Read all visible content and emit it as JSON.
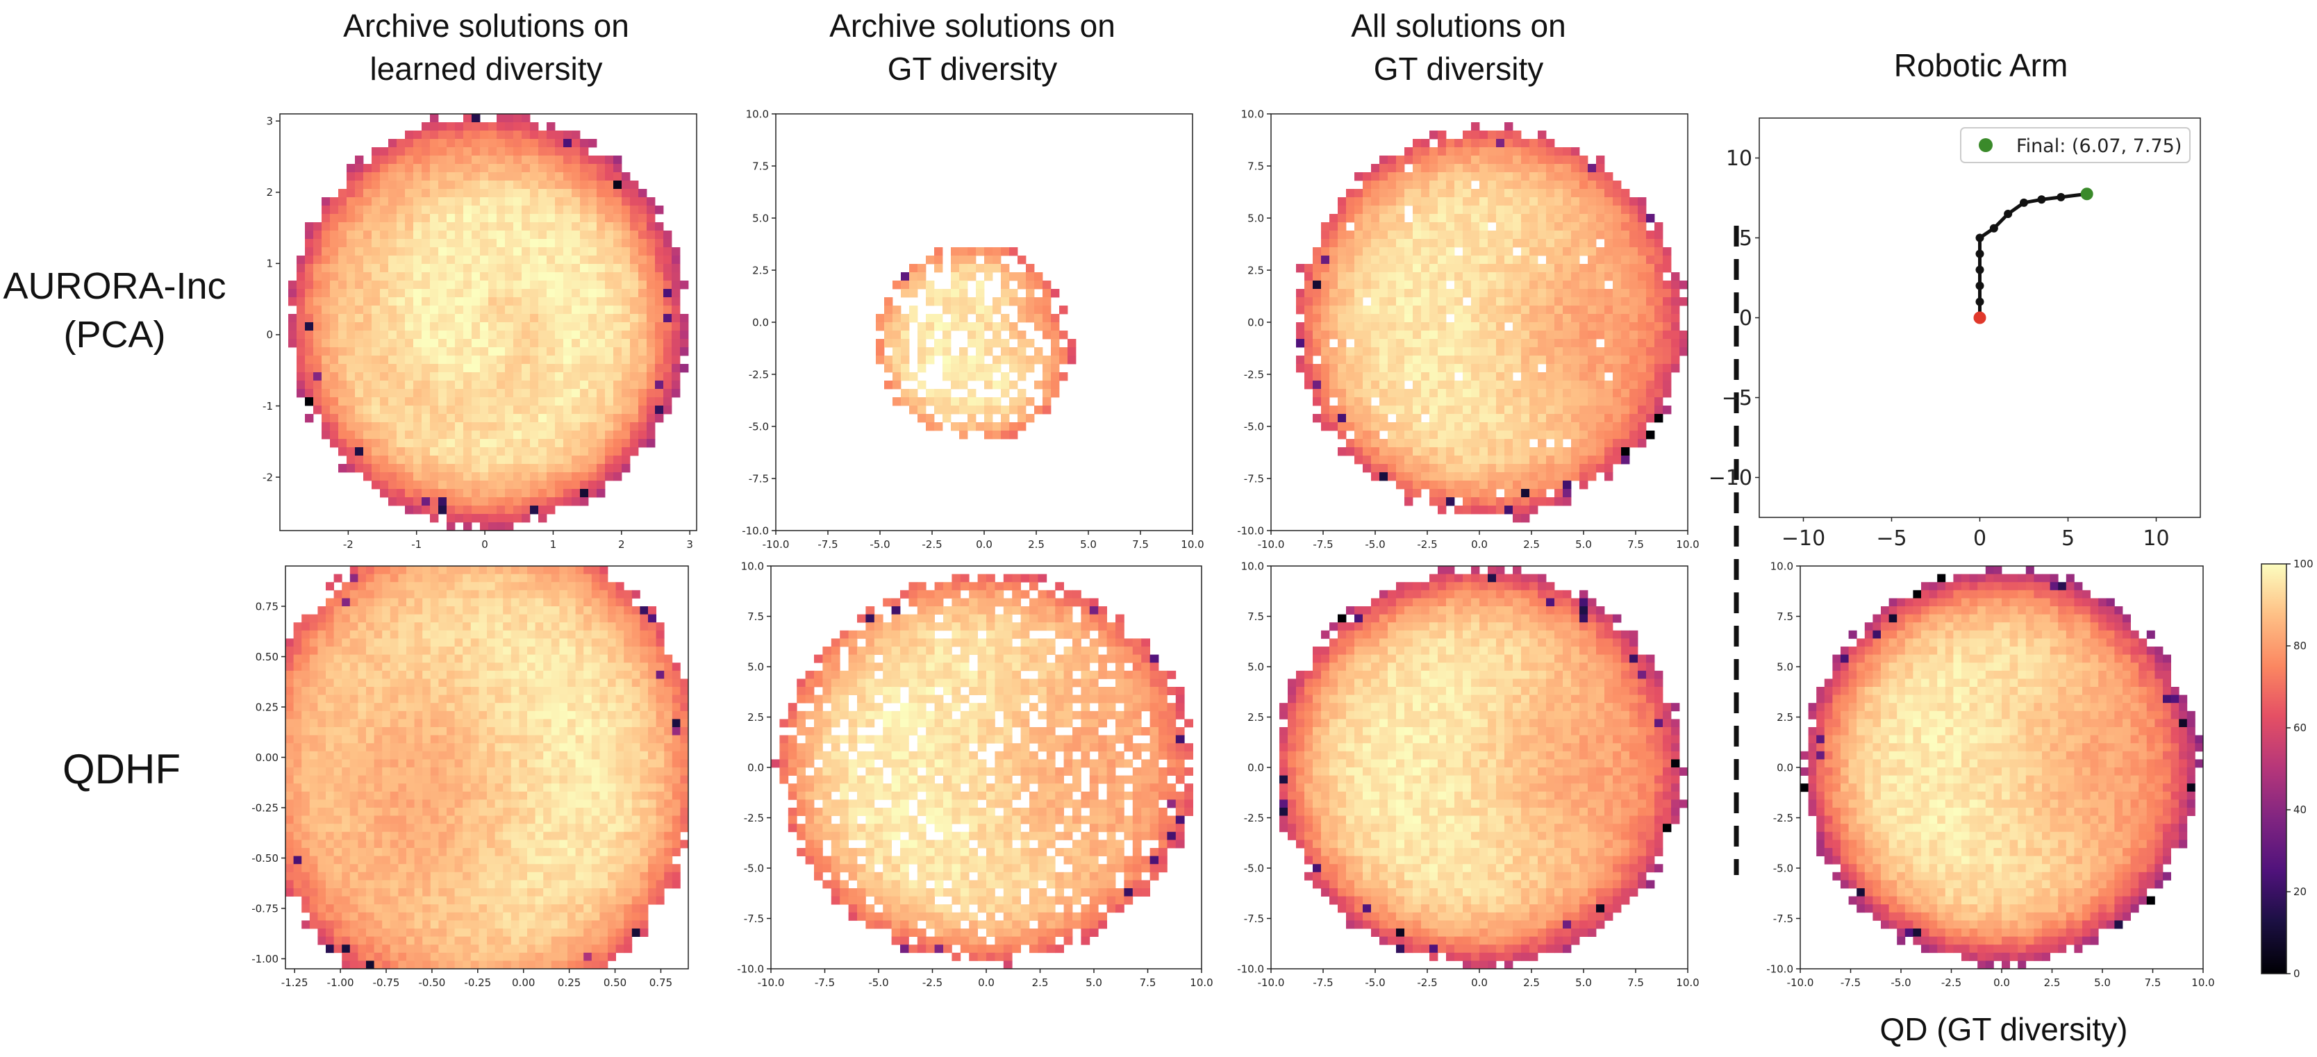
{
  "column_titles": [
    [
      "Archive solutions on",
      "learned diversity"
    ],
    [
      "Archive solutions on",
      "GT diversity"
    ],
    [
      "All solutions on",
      "GT diversity"
    ],
    [
      "Robotic Arm"
    ]
  ],
  "row_labels": [
    [
      "AURORA-Inc",
      "(PCA)"
    ],
    [
      "QDHF"
    ]
  ],
  "bottom_label": "QD (GT diversity)",
  "colors": {
    "cmap": "magma",
    "divider": "#111111",
    "arm": "#111111",
    "base_point": "#e0382b",
    "final_point": "#3a8a2a"
  },
  "chart_data": [
    {
      "type": "heatmap",
      "id": "aurora_learned",
      "title": "Archive solutions on learned diversity",
      "row": "AURORA-Inc (PCA)",
      "xlim": [
        -3.0,
        3.1
      ],
      "ylim": [
        -2.75,
        3.1
      ],
      "xticks": [
        "-2",
        "-1",
        "0",
        "1",
        "2",
        "3"
      ],
      "xtick_values": [
        -2,
        -1,
        0,
        1,
        2,
        3
      ],
      "yticks": [
        "-2",
        "-1",
        "0",
        "1",
        "2",
        "3"
      ],
      "ytick_values": [
        -2,
        -1,
        0,
        1,
        2,
        3
      ],
      "pattern": {
        "kind": "disk",
        "cx": 0.05,
        "cy": 0.2,
        "r": 2.9,
        "fill": 1.0,
        "swirl": 0.12,
        "edge_value": 55,
        "center_value": 97
      }
    },
    {
      "type": "heatmap",
      "id": "aurora_archive_gt",
      "title": "Archive solutions on GT diversity",
      "row": "AURORA-Inc (PCA)",
      "xlim": [
        -10,
        10
      ],
      "ylim": [
        -10,
        10
      ],
      "xticks": [
        "-10.0",
        "-7.5",
        "-5.0",
        "-2.5",
        "0.0",
        "2.5",
        "5.0",
        "7.5",
        "10.0"
      ],
      "xtick_values": [
        -10,
        -7.5,
        -5,
        -2.5,
        0,
        2.5,
        5,
        7.5,
        10
      ],
      "yticks": [
        "-10.0",
        "-7.5",
        "-5.0",
        "-2.5",
        "0.0",
        "2.5",
        "5.0",
        "7.5",
        "10.0"
      ],
      "ytick_values": [
        -10,
        -7.5,
        -5,
        -2.5,
        0,
        2.5,
        5,
        7.5,
        10
      ],
      "pattern": {
        "kind": "sparse",
        "cx": -0.5,
        "cy": -1.0,
        "r": 4.8,
        "fill": 0.7,
        "hot_x": 3.2,
        "hot_y": 0.3,
        "edge_value": 70,
        "center_value": 96
      }
    },
    {
      "type": "heatmap",
      "id": "aurora_all_gt",
      "title": "All solutions on GT diversity",
      "row": "AURORA-Inc (PCA)",
      "xlim": [
        -10,
        10
      ],
      "ylim": [
        -10,
        10
      ],
      "xticks": [
        "-10.0",
        "-7.5",
        "-5.0",
        "-2.5",
        "0.0",
        "2.5",
        "5.0",
        "7.5",
        "10.0"
      ],
      "xtick_values": [
        -10,
        -7.5,
        -5,
        -2.5,
        0,
        2.5,
        5,
        7.5,
        10
      ],
      "yticks": [
        "-10.0",
        "-7.5",
        "-5.0",
        "-2.5",
        "0.0",
        "2.5",
        "5.0",
        "7.5",
        "10.0"
      ],
      "ytick_values": [
        -10,
        -7.5,
        -5,
        -2.5,
        0,
        2.5,
        5,
        7.5,
        10
      ],
      "pattern": {
        "kind": "disk",
        "cx": 0.5,
        "cy": 0.0,
        "r": 9.3,
        "fill": 0.97,
        "hot_x": 5.5,
        "hot_y": -0.5,
        "edge_value": 60,
        "center_value": 96
      }
    },
    {
      "type": "line",
      "id": "robotic_arm",
      "title": "Robotic Arm",
      "xlim": [
        -12.5,
        12.5
      ],
      "ylim": [
        -12.5,
        12.5
      ],
      "xticks": [
        "−10",
        "−5",
        "0",
        "5",
        "10"
      ],
      "xtick_values": [
        -10,
        -5,
        0,
        5,
        10
      ],
      "yticks": [
        "−10",
        "−5",
        "0",
        "5",
        "10"
      ],
      "ytick_values": [
        -10,
        -5,
        0,
        5,
        10
      ],
      "x": [
        0,
        0,
        0,
        0,
        0,
        0,
        0.8,
        1.6,
        2.5,
        3.5,
        4.6,
        6.07
      ],
      "y": [
        0,
        1.0,
        2.0,
        3.0,
        4.0,
        5.0,
        5.6,
        6.5,
        7.2,
        7.4,
        7.55,
        7.75
      ],
      "legend": "Final: (6.07, 7.75)",
      "legend_position": "top-right"
    },
    {
      "type": "heatmap",
      "id": "qdhf_learned",
      "title": "Archive solutions on learned diversity",
      "row": "QDHF",
      "xlim": [
        -1.3,
        0.9
      ],
      "ylim": [
        -1.05,
        0.95
      ],
      "xticks": [
        "-1.25",
        "-1.00",
        "-0.75",
        "-0.50",
        "-0.25",
        "0.00",
        "0.25",
        "0.50",
        "0.75"
      ],
      "xtick_values": [
        -1.25,
        -1.0,
        -0.75,
        -0.5,
        -0.25,
        0,
        0.25,
        0.5,
        0.75
      ],
      "yticks": [
        "-1.00",
        "-0.75",
        "-0.50",
        "-0.25",
        "0.00",
        "0.25",
        "0.50",
        "0.75"
      ],
      "ytick_values": [
        -1.0,
        -0.75,
        -0.5,
        -0.25,
        0,
        0.25,
        0.5,
        0.75
      ],
      "pattern": {
        "kind": "disk",
        "cx": -0.25,
        "cy": -0.05,
        "r": 1.2,
        "fill": 1.0,
        "hot_x": -0.6,
        "hot_y": -0.2,
        "edge_value": 65,
        "center_value": 97
      }
    },
    {
      "type": "heatmap",
      "id": "qdhf_archive_gt",
      "title": "Archive solutions on GT diversity",
      "row": "QDHF",
      "xlim": [
        -10,
        10
      ],
      "ylim": [
        -10,
        10
      ],
      "xticks": [
        "-10.0",
        "-7.5",
        "-5.0",
        "-2.5",
        "0.0",
        "2.5",
        "5.0",
        "7.5",
        "10.0"
      ],
      "xtick_values": [
        -10,
        -7.5,
        -5,
        -2.5,
        0,
        2.5,
        5,
        7.5,
        10
      ],
      "yticks": [
        "-10.0",
        "-7.5",
        "-5.0",
        "-2.5",
        "0.0",
        "2.5",
        "5.0",
        "7.5",
        "10.0"
      ],
      "ytick_values": [
        -10,
        -7.5,
        -5,
        -2.5,
        0,
        2.5,
        5,
        7.5,
        10
      ],
      "pattern": {
        "kind": "disk",
        "cx": 0.0,
        "cy": 0.0,
        "r": 9.7,
        "fill": 0.85,
        "hot_x": 4.5,
        "hot_y": 0.0,
        "edge_value": 65,
        "center_value": 97
      }
    },
    {
      "type": "heatmap",
      "id": "qdhf_all_gt",
      "title": "All solutions on GT diversity",
      "row": "QDHF",
      "xlim": [
        -10,
        10
      ],
      "ylim": [
        -10,
        10
      ],
      "xticks": [
        "-10.0",
        "-7.5",
        "-5.0",
        "-2.5",
        "0.0",
        "2.5",
        "5.0",
        "7.5",
        "10.0"
      ],
      "xtick_values": [
        -10,
        -7.5,
        -5,
        -2.5,
        0,
        2.5,
        5,
        7.5,
        10
      ],
      "yticks": [
        "-10.0",
        "-7.5",
        "-5.0",
        "-2.5",
        "0.0",
        "2.5",
        "5.0",
        "7.5",
        "10.0"
      ],
      "ytick_values": [
        -10,
        -7.5,
        -5,
        -2.5,
        0,
        2.5,
        5,
        7.5,
        10
      ],
      "pattern": {
        "kind": "disk",
        "cx": 0.0,
        "cy": 0.0,
        "r": 9.8,
        "fill": 1.0,
        "hot_x": 5.0,
        "hot_y": 0.0,
        "edge_value": 55,
        "center_value": 97
      }
    },
    {
      "type": "heatmap",
      "id": "qd_gt",
      "title": "QD (GT diversity)",
      "row": "QDHF",
      "xlim": [
        -10,
        10
      ],
      "ylim": [
        -10,
        10
      ],
      "xticks": [
        "-10.0",
        "-7.5",
        "-5.0",
        "-2.5",
        "0.0",
        "2.5",
        "5.0",
        "7.5",
        "10.0"
      ],
      "xtick_values": [
        -10,
        -7.5,
        -5,
        -2.5,
        0,
        2.5,
        5,
        7.5,
        10
      ],
      "yticks": [
        "-10.0",
        "-7.5",
        "-5.0",
        "-2.5",
        "0.0",
        "2.5",
        "5.0",
        "7.5",
        "10.0"
      ],
      "ytick_values": [
        -10,
        -7.5,
        -5,
        -2.5,
        0,
        2.5,
        5,
        7.5,
        10
      ],
      "pattern": {
        "kind": "disk",
        "cx": 0.0,
        "cy": 0.0,
        "r": 9.8,
        "fill": 1.0,
        "hot_x": 5.0,
        "hot_y": 0.0,
        "edge_value": 48,
        "center_value": 97
      }
    },
    {
      "type": "colorbar",
      "id": "colorbar",
      "range": [
        0,
        100
      ],
      "ticks": [
        "0",
        "20",
        "40",
        "60",
        "80",
        "100"
      ],
      "tick_values": [
        0,
        20,
        40,
        60,
        80,
        100
      ]
    }
  ]
}
